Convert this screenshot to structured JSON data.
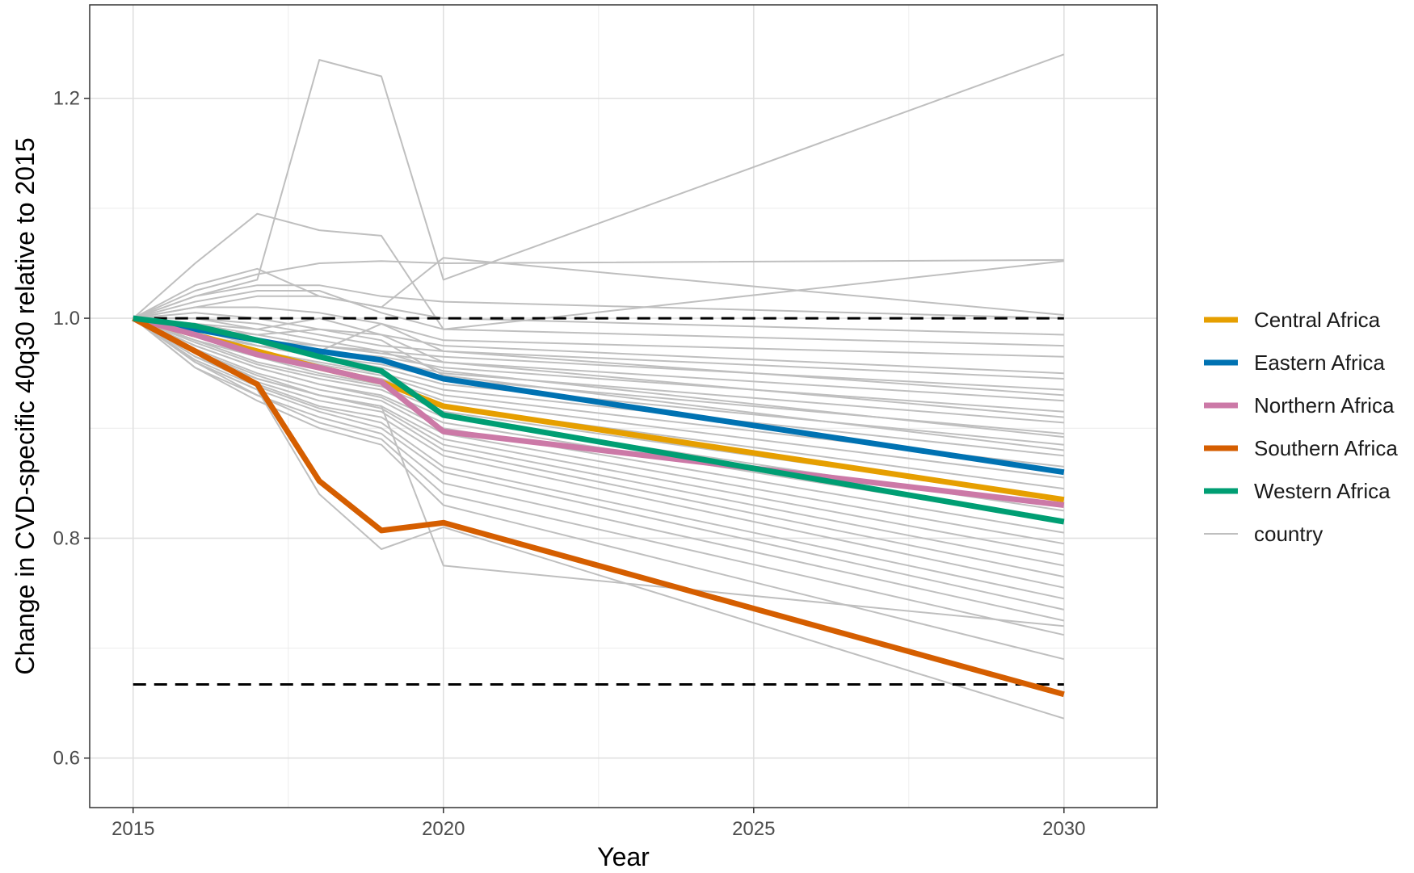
{
  "chart_data": {
    "type": "line",
    "title": "",
    "xlabel": "Year",
    "ylabel": "Change in CVD-specific 40q30 relative to 2015",
    "xlim": [
      2014.3,
      2031.5
    ],
    "ylim": [
      0.555,
      1.285
    ],
    "x_ticks": [
      2015,
      2020,
      2025,
      2030
    ],
    "x_tick_labels": [
      "2015",
      "2020",
      "2025",
      "2030"
    ],
    "y_ticks": [
      0.6,
      0.8,
      1.0,
      1.2
    ],
    "y_tick_labels": [
      "0.6",
      "0.8",
      "1.0",
      "1.2"
    ],
    "grid": true,
    "legend_position": "right",
    "reference_lines": [
      {
        "name": "baseline",
        "y": 1.0,
        "style": "dashed",
        "color": "#000000"
      },
      {
        "name": "target",
        "y": 0.667,
        "style": "dashed",
        "color": "#000000"
      }
    ],
    "x": [
      2015,
      2016,
      2017,
      2018,
      2019,
      2020,
      2030
    ],
    "series": [
      {
        "name": "Central Africa",
        "color": "#E69F00",
        "values": [
          1.0,
          0.985,
          0.97,
          0.955,
          0.942,
          0.92,
          0.835
        ]
      },
      {
        "name": "Eastern Africa",
        "color": "#0072B2",
        "values": [
          1.0,
          0.99,
          0.98,
          0.97,
          0.962,
          0.945,
          0.86
        ]
      },
      {
        "name": "Northern Africa",
        "color": "#CC79A7",
        "values": [
          1.0,
          0.985,
          0.967,
          0.955,
          0.942,
          0.897,
          0.83
        ]
      },
      {
        "name": "Southern Africa",
        "color": "#D55E00",
        "values": [
          1.0,
          0.97,
          0.94,
          0.852,
          0.807,
          0.814,
          0.658
        ]
      },
      {
        "name": "Western Africa",
        "color": "#009E73",
        "values": [
          1.0,
          0.993,
          0.98,
          0.965,
          0.952,
          0.912,
          0.815
        ]
      }
    ],
    "country_series_name": "country",
    "country_color": "#BFBFBF",
    "country_lines": [
      [
        1.0,
        1.02,
        1.035,
        1.235,
        1.22,
        1.035,
        1.24
      ],
      [
        1.0,
        1.05,
        1.095,
        1.08,
        1.075,
        0.99,
        1.052
      ],
      [
        1.0,
        1.025,
        1.04,
        1.05,
        1.052,
        1.05,
        1.053
      ],
      [
        1.0,
        1.03,
        1.045,
        1.02,
        1.01,
        1.055,
        1.003
      ],
      [
        1.0,
        1.02,
        1.03,
        1.03,
        1.02,
        1.015,
        1.0
      ],
      [
        1.0,
        1.01,
        1.02,
        1.02,
        1.01,
        1.0,
        0.985
      ],
      [
        1.0,
        1.015,
        1.025,
        1.025,
        1.005,
        0.99,
        0.975
      ],
      [
        1.0,
        1.01,
        1.01,
        1.005,
        0.995,
        0.98,
        0.965
      ],
      [
        1.0,
        1.005,
        1.0,
        0.99,
        0.985,
        0.975,
        0.95
      ],
      [
        1.0,
        1.0,
        0.995,
        0.985,
        0.975,
        0.97,
        0.945
      ],
      [
        1.0,
        0.995,
        0.99,
        0.98,
        0.97,
        0.965,
        0.935
      ],
      [
        1.0,
        0.995,
        0.985,
        0.975,
        0.968,
        0.96,
        0.925
      ],
      [
        1.0,
        0.99,
        0.98,
        0.97,
        0.965,
        0.955,
        0.915
      ],
      [
        1.0,
        0.99,
        0.98,
        0.97,
        0.962,
        0.95,
        0.905
      ],
      [
        1.0,
        0.99,
        0.975,
        0.965,
        0.958,
        0.945,
        0.895
      ],
      [
        1.0,
        0.985,
        0.975,
        0.965,
        0.955,
        0.94,
        0.885
      ],
      [
        1.0,
        0.985,
        0.97,
        0.96,
        0.95,
        0.935,
        0.875
      ],
      [
        1.0,
        0.985,
        0.97,
        0.958,
        0.948,
        0.93,
        0.865
      ],
      [
        1.0,
        0.98,
        0.965,
        0.955,
        0.945,
        0.925,
        0.855
      ],
      [
        1.0,
        0.98,
        0.965,
        0.95,
        0.94,
        0.92,
        0.845
      ],
      [
        1.0,
        0.98,
        0.96,
        0.948,
        0.938,
        0.915,
        0.835
      ],
      [
        1.0,
        0.978,
        0.958,
        0.945,
        0.935,
        0.91,
        0.825
      ],
      [
        1.0,
        0.975,
        0.955,
        0.94,
        0.93,
        0.905,
        0.815
      ],
      [
        1.0,
        0.975,
        0.955,
        0.94,
        0.928,
        0.9,
        0.805
      ],
      [
        1.0,
        0.972,
        0.95,
        0.935,
        0.925,
        0.895,
        0.795
      ],
      [
        1.0,
        0.97,
        0.948,
        0.93,
        0.92,
        0.89,
        0.785
      ],
      [
        1.0,
        0.97,
        0.945,
        0.93,
        0.918,
        0.885,
        0.775
      ],
      [
        1.0,
        0.968,
        0.942,
        0.925,
        0.915,
        0.88,
        0.765
      ],
      [
        1.0,
        0.965,
        0.94,
        0.92,
        0.91,
        0.875,
        0.755
      ],
      [
        1.0,
        0.962,
        0.938,
        0.918,
        0.905,
        0.865,
        0.745
      ],
      [
        1.0,
        0.96,
        0.935,
        0.915,
        0.9,
        0.86,
        0.735
      ],
      [
        1.0,
        0.96,
        0.93,
        0.91,
        0.895,
        0.85,
        0.725
      ],
      [
        1.0,
        0.955,
        0.93,
        0.905,
        0.89,
        0.84,
        0.712
      ],
      [
        1.0,
        0.955,
        0.925,
        0.9,
        0.885,
        0.83,
        0.69
      ],
      [
        1.0,
        0.96,
        0.935,
        0.84,
        0.79,
        0.81,
        0.636
      ],
      [
        1.0,
        0.965,
        0.945,
        0.93,
        0.92,
        0.775,
        0.72
      ],
      [
        1.0,
        0.99,
        0.975,
        0.97,
        0.995,
        0.97,
        0.93
      ],
      [
        1.0,
        1.0,
        0.99,
        1.0,
        0.985,
        0.96,
        0.91
      ],
      [
        1.0,
        0.995,
        0.98,
        0.975,
        0.97,
        0.952,
        0.892
      ],
      [
        1.0,
        0.99,
        0.985,
        0.99,
        0.98,
        0.948,
        0.88
      ]
    ]
  },
  "legend": {
    "items": [
      {
        "label": "Central Africa",
        "color": "#E69F00"
      },
      {
        "label": "Eastern Africa",
        "color": "#0072B2"
      },
      {
        "label": "Northern Africa",
        "color": "#CC79A7"
      },
      {
        "label": "Southern Africa",
        "color": "#D55E00"
      },
      {
        "label": "Western Africa",
        "color": "#009E73"
      },
      {
        "label": "country",
        "color": "#BFBFBF"
      }
    ]
  }
}
